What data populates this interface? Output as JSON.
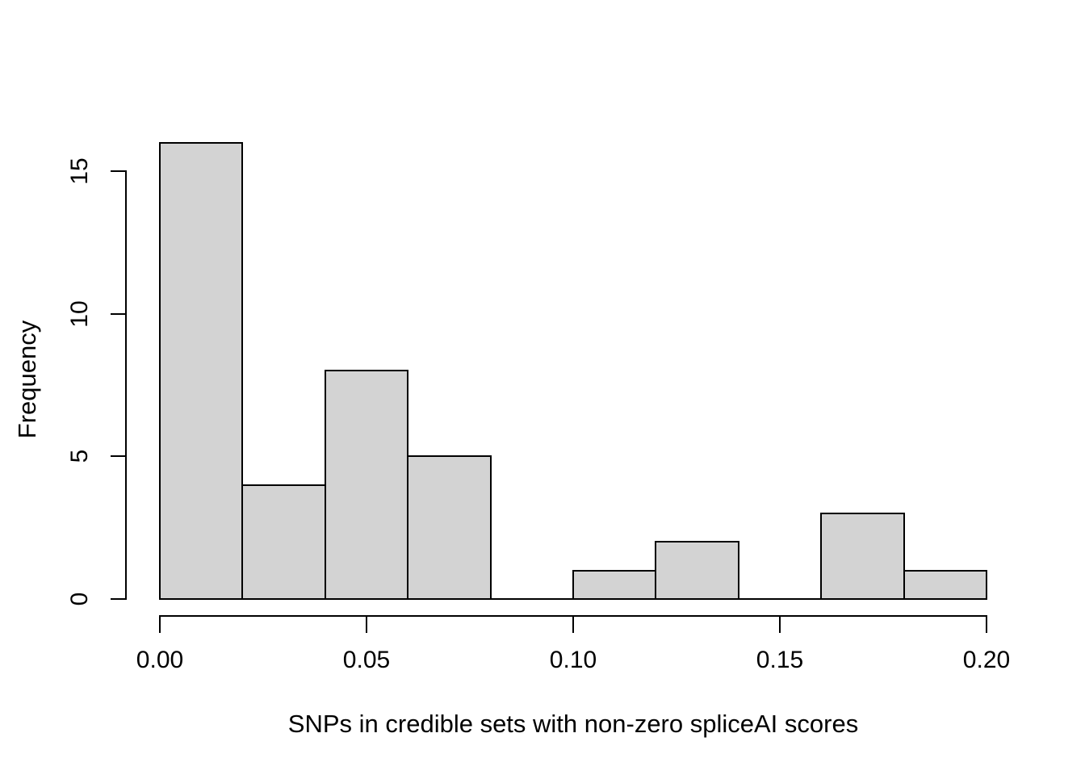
{
  "chart_data": {
    "type": "bar",
    "subtype": "histogram",
    "title": "",
    "xlabel": "SNPs in credible sets with non-zero spliceAI scores",
    "ylabel": "Frequency",
    "breaks": [
      0.0,
      0.02,
      0.04,
      0.06,
      0.08,
      0.1,
      0.12,
      0.14,
      0.16,
      0.18,
      0.2
    ],
    "counts": [
      16,
      4,
      8,
      5,
      0,
      1,
      2,
      0,
      3,
      1
    ],
    "xlim": [
      0.0,
      0.2
    ],
    "ylim": [
      0,
      16
    ],
    "x_tick_values": [
      0.0,
      0.05,
      0.1,
      0.15,
      0.2
    ],
    "x_tick_labels": [
      "0.00",
      "0.05",
      "0.10",
      "0.15",
      "0.20"
    ],
    "y_tick_values": [
      0,
      5,
      10,
      15
    ],
    "y_tick_labels": [
      "0",
      "5",
      "10",
      "15"
    ],
    "grid": "off",
    "legend": "none",
    "bar_fill": "#d3d3d3",
    "bar_stroke": "#000000",
    "background": "#ffffff"
  }
}
